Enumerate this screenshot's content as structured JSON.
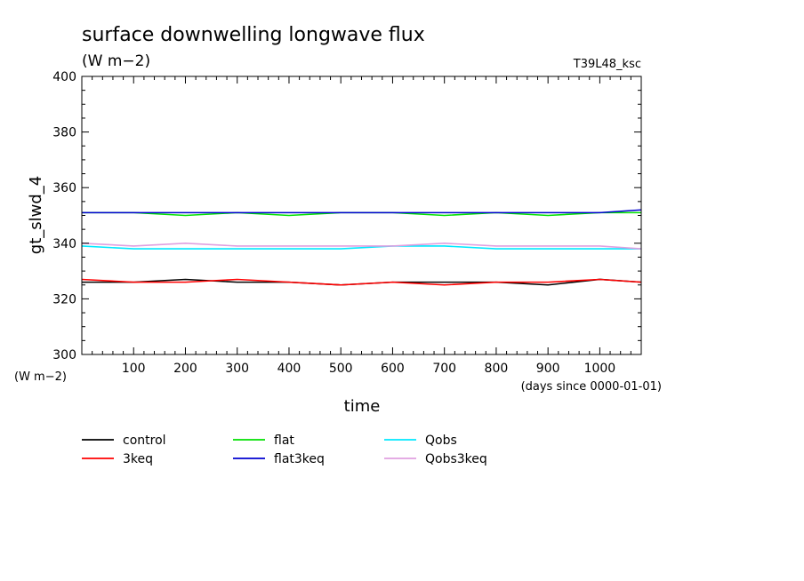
{
  "chart_data": {
    "type": "line",
    "title": "surface downwelling longwave flux",
    "units": "(W m−2)",
    "run_label": "T39L48_ksc",
    "ylabel": "gt_slwd_4",
    "y_units": "(W m−2)",
    "xlabel": "time",
    "x_units": "(days since 0000-01-01)",
    "xlim": [
      0,
      1080
    ],
    "ylim": [
      300,
      400
    ],
    "x_ticks": [
      100,
      200,
      300,
      400,
      500,
      600,
      700,
      800,
      900,
      1000
    ],
    "y_ticks": [
      300,
      320,
      340,
      360,
      380,
      400
    ],
    "grid": false,
    "legend_position": "bottom",
    "series": [
      {
        "name": "control",
        "color": "#000000",
        "x": [
          0,
          100,
          200,
          300,
          400,
          500,
          600,
          700,
          800,
          900,
          1000,
          1080
        ],
        "y": [
          326,
          326,
          327,
          326,
          326,
          325,
          326,
          326,
          326,
          325,
          327,
          326
        ]
      },
      {
        "name": "3keq",
        "color": "#ff0000",
        "x": [
          0,
          100,
          200,
          300,
          400,
          500,
          600,
          700,
          800,
          900,
          1000,
          1080
        ],
        "y": [
          327,
          326,
          326,
          327,
          326,
          325,
          326,
          325,
          326,
          326,
          327,
          326
        ]
      },
      {
        "name": "flat",
        "color": "#00e000",
        "x": [
          0,
          100,
          200,
          300,
          400,
          500,
          600,
          700,
          800,
          900,
          1000,
          1080
        ],
        "y": [
          351,
          351,
          350,
          351,
          350,
          351,
          351,
          350,
          351,
          350,
          351,
          351
        ]
      },
      {
        "name": "flat3keq",
        "color": "#0000d0",
        "x": [
          0,
          100,
          200,
          300,
          400,
          500,
          600,
          700,
          800,
          900,
          1000,
          1080
        ],
        "y": [
          351,
          351,
          351,
          351,
          351,
          351,
          351,
          351,
          351,
          351,
          351,
          352
        ]
      },
      {
        "name": "Qobs",
        "color": "#00e8ff",
        "x": [
          0,
          100,
          200,
          300,
          400,
          500,
          600,
          700,
          800,
          900,
          1000,
          1080
        ],
        "y": [
          339,
          338,
          338,
          338,
          338,
          338,
          339,
          339,
          338,
          338,
          338,
          338
        ]
      },
      {
        "name": "Qobs3keq",
        "color": "#e0a0e0",
        "x": [
          0,
          100,
          200,
          300,
          400,
          500,
          600,
          700,
          800,
          900,
          1000,
          1080
        ],
        "y": [
          340,
          339,
          340,
          339,
          339,
          339,
          339,
          340,
          339,
          339,
          339,
          338
        ]
      }
    ]
  }
}
